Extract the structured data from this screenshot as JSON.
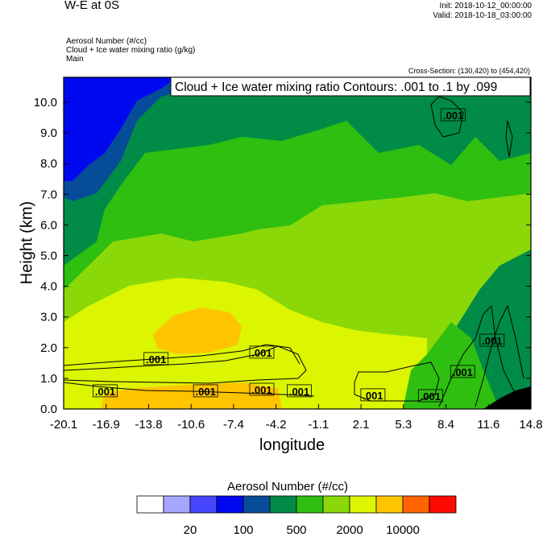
{
  "header": {
    "title": "W-E at 0S",
    "init": "Init: 2018-10-12_00:00:00",
    "valid": "Valid: 2018-10-18_03:00:00",
    "subtitles": [
      "Aerosol Number   (#/cc)",
      "Cloud + Ice water mixing ratio   (g/kg)",
      "Main"
    ],
    "cross_section": "Cross-Section: (130,420) to (454,420)"
  },
  "chart_data": {
    "type": "heatmap",
    "title": "W-E at 0S",
    "xlabel": "longitude",
    "ylabel": "Height (km)",
    "xlim": [
      -20.1,
      14.8
    ],
    "ylim": [
      0,
      10.8
    ],
    "x_ticks": [
      "-20.1",
      "-16.9",
      "-13.8",
      "-10.6",
      "-7.4",
      "-4.2",
      "-1.1",
      "2.1",
      "5.3",
      "8.4",
      "11.6",
      "14.8"
    ],
    "y_ticks": [
      "0.0",
      "1.0",
      "2.0",
      "3.0",
      "4.0",
      "5.0",
      "6.0",
      "7.0",
      "8.0",
      "9.0",
      "10.0"
    ],
    "contour_info": "Cloud + Ice water mixing ratio Contours: .001 to .1 by .099",
    "contour_labels": [
      {
        "text": ".001",
        "lon": -13.2,
        "height": 1.63
      },
      {
        "text": ".001",
        "lon": -5.3,
        "height": 1.84
      },
      {
        "text": ".001",
        "lon": -17.0,
        "height": 0.58
      },
      {
        "text": ".001",
        "lon": -9.5,
        "height": 0.58
      },
      {
        "text": ".001",
        "lon": -5.3,
        "height": 0.63
      },
      {
        "text": ".001",
        "lon": -2.5,
        "height": 0.58
      },
      {
        "text": ".001",
        "lon": 3.0,
        "height": 0.45
      },
      {
        "text": ".001",
        "lon": 7.3,
        "height": 0.42
      },
      {
        "text": ".001",
        "lon": 9.0,
        "height": 9.58
      },
      {
        "text": ".001",
        "lon": 11.9,
        "height": 2.23
      },
      {
        "text": ".001",
        "lon": 9.7,
        "height": 1.21
      }
    ],
    "colorbar": {
      "title": "Aerosol Number  (#/cc)",
      "colors": [
        "#ffffff",
        "#a6a6ff",
        "#4646ff",
        "#0008f0",
        "#064c98",
        "#008c46",
        "#2ebf10",
        "#8ad808",
        "#dcf500",
        "#ffc400",
        "#ff6400",
        "#ff0a00"
      ],
      "labels": [
        "20",
        "100",
        "500",
        "2000",
        "10000"
      ]
    }
  }
}
